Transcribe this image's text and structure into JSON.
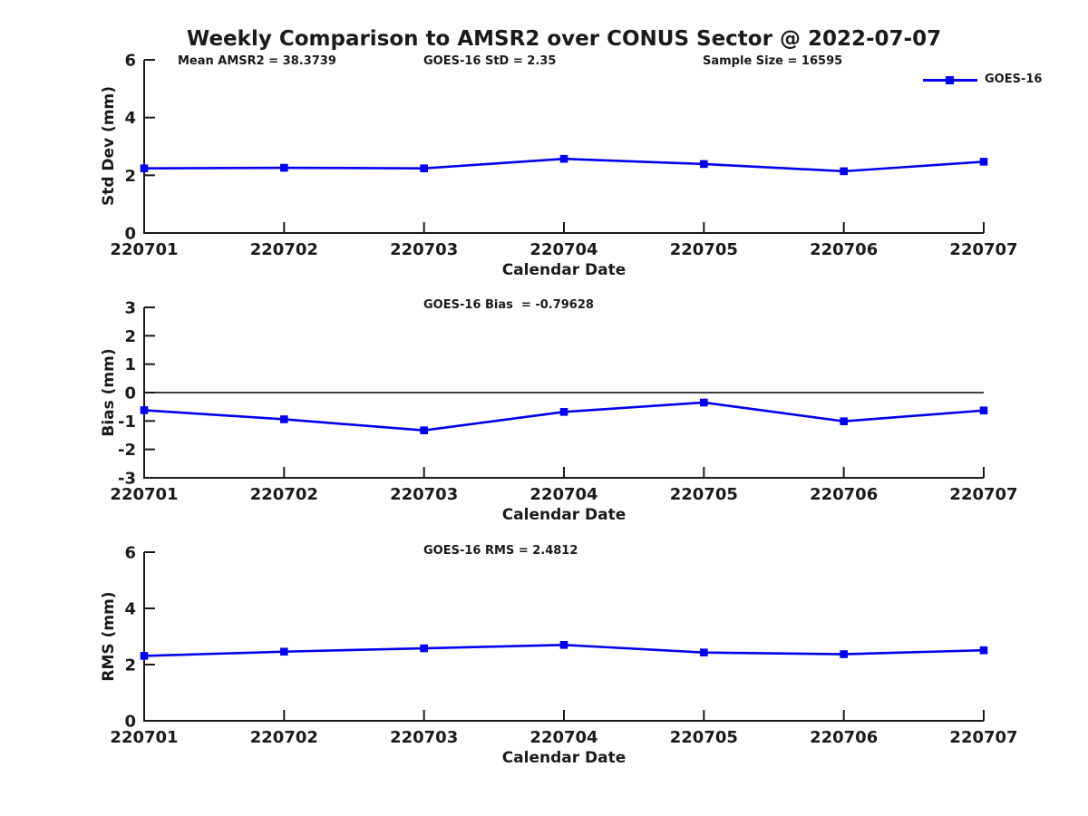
{
  "title": "Weekly Comparison to AMSR2 over CONUS Sector @ 2022-07-07",
  "colors": {
    "line": "#0000ee",
    "axis": "#1a1a1a",
    "zero_line": "#000000",
    "background": "#ffffff"
  },
  "legend": {
    "label": "GOES-16",
    "position": "top-right",
    "marker": "filled-square"
  },
  "chart_data": [
    {
      "type": "line",
      "title": "",
      "ylabel": "Std Dev (mm)",
      "xlabel": "Calendar Date",
      "annotations": [
        "Mean AMSR2 = 38.3739",
        "GOES-16 StD = 2.35",
        "Sample Size = 16595"
      ],
      "categories": [
        "220701",
        "220702",
        "220703",
        "220704",
        "220705",
        "220706",
        "220707"
      ],
      "series": [
        {
          "name": "GOES-16",
          "values": [
            2.24,
            2.26,
            2.24,
            2.57,
            2.39,
            2.14,
            2.47
          ]
        }
      ],
      "ylim": [
        0,
        6
      ],
      "yticks": [
        0,
        2,
        4,
        6
      ],
      "grid": false,
      "marker": "square",
      "zero_line": false
    },
    {
      "type": "line",
      "title": "",
      "ylabel": "Bias (mm)",
      "xlabel": "Calendar Date",
      "annotations": [
        "GOES-16 Bias  = -0.79628"
      ],
      "categories": [
        "220701",
        "220702",
        "220703",
        "220704",
        "220705",
        "220706",
        "220707"
      ],
      "series": [
        {
          "name": "GOES-16",
          "values": [
            -0.62,
            -0.94,
            -1.33,
            -0.68,
            -0.35,
            -1.01,
            -0.63
          ]
        }
      ],
      "ylim": [
        -3,
        3
      ],
      "yticks": [
        -3,
        -2,
        -1,
        0,
        1,
        2,
        3
      ],
      "grid": false,
      "marker": "square",
      "zero_line": true
    },
    {
      "type": "line",
      "title": "",
      "ylabel": "RMS (mm)",
      "xlabel": "Calendar Date",
      "annotations": [
        "GOES-16 RMS = 2.4812"
      ],
      "categories": [
        "220701",
        "220702",
        "220703",
        "220704",
        "220705",
        "220706",
        "220707"
      ],
      "series": [
        {
          "name": "GOES-16",
          "values": [
            2.31,
            2.46,
            2.58,
            2.7,
            2.43,
            2.37,
            2.51
          ]
        }
      ],
      "ylim": [
        0,
        6
      ],
      "yticks": [
        0,
        2,
        4,
        6
      ],
      "grid": false,
      "marker": "square",
      "zero_line": false
    }
  ]
}
